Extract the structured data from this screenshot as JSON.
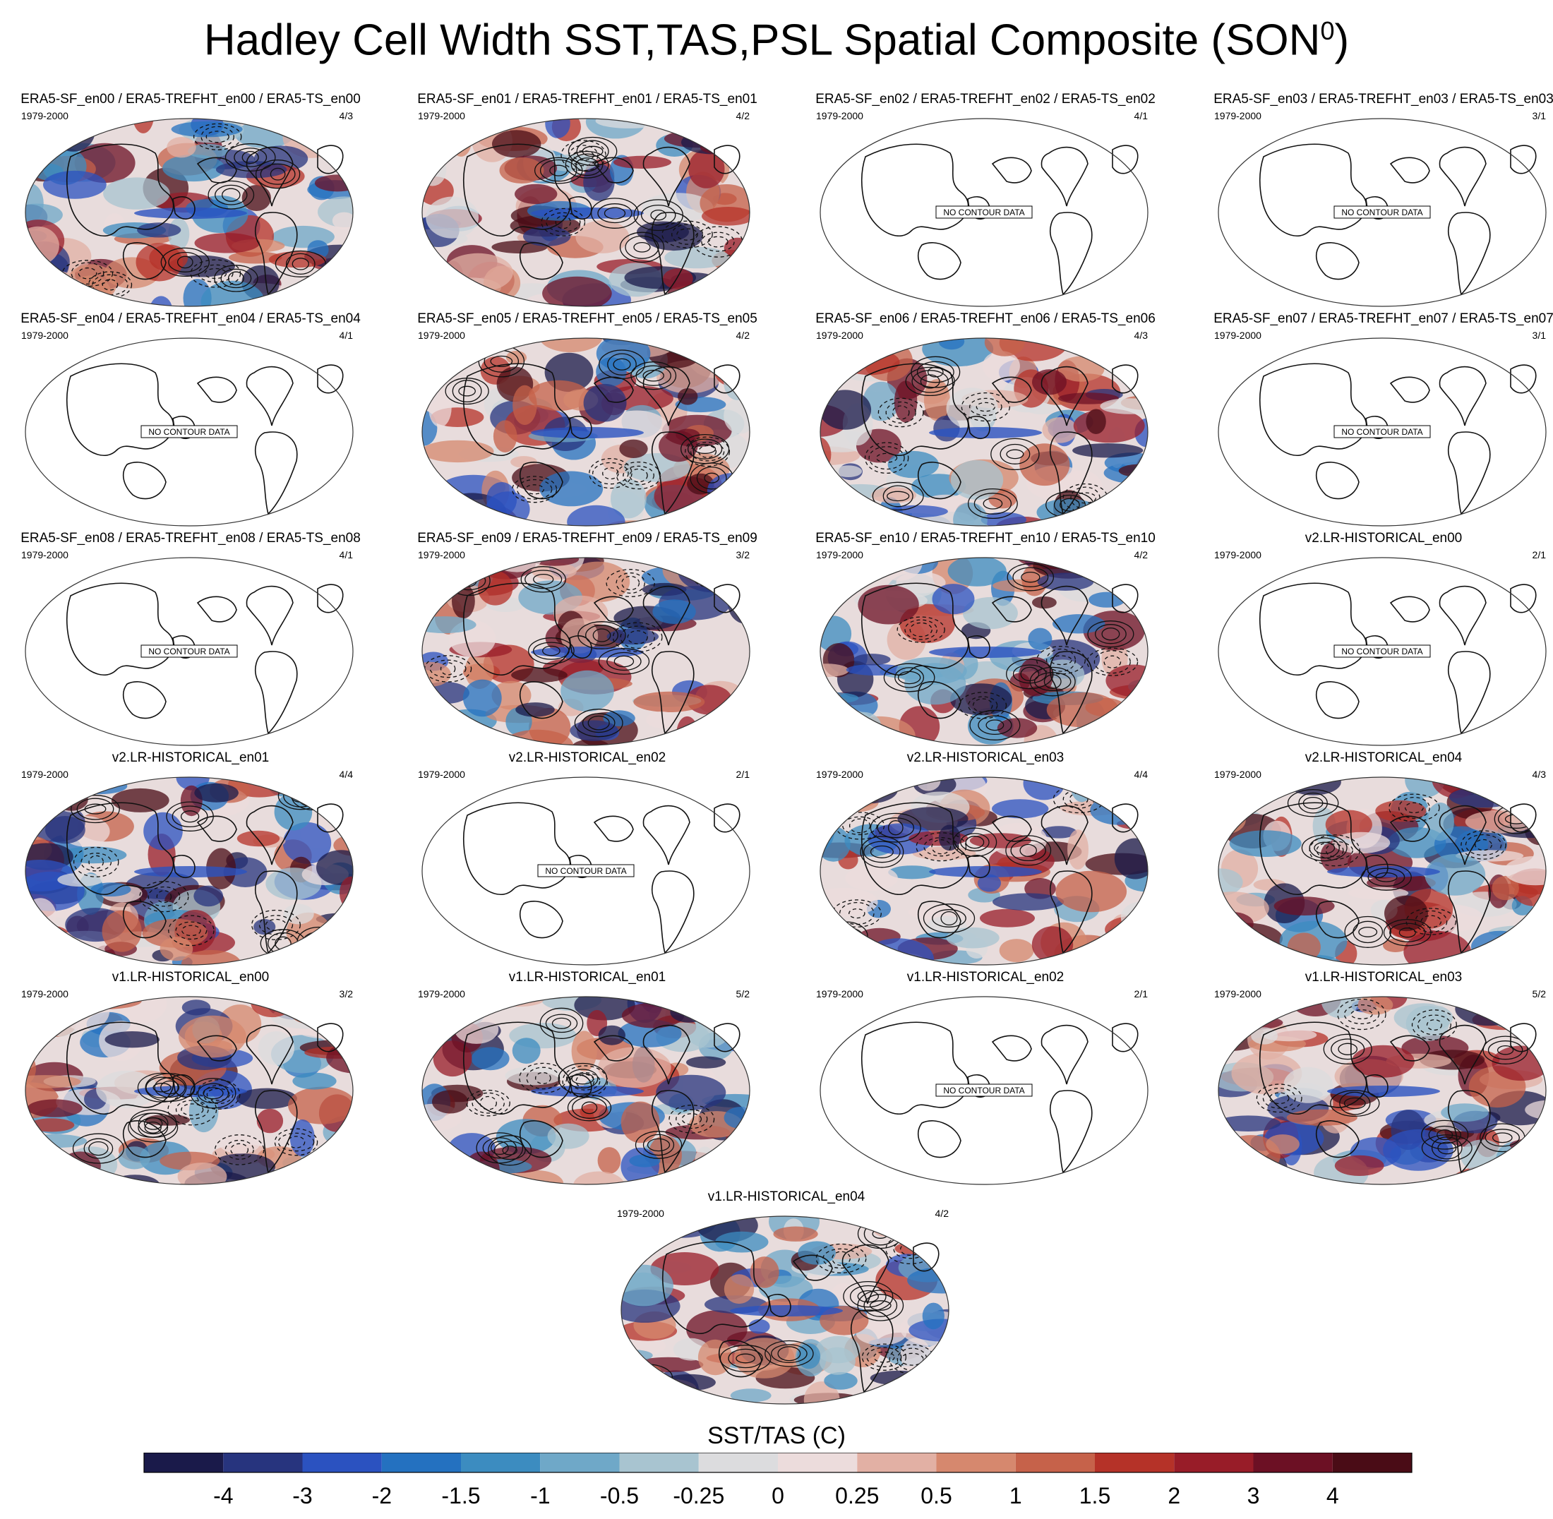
{
  "title": "Hadley Cell Width SST,TAS,PSL Spatial Composite (SON",
  "title_sup": "0",
  "title_suffix": ")",
  "period": "1979-2000",
  "no_contour_label": "NO CONTOUR DATA",
  "panels": [
    {
      "title": "ERA5-SF_en00 / ERA5-TREFHT_en00 / ERA5-TS_en00",
      "count": "4/3",
      "has_data": true
    },
    {
      "title": "ERA5-SF_en01 / ERA5-TREFHT_en01 / ERA5-TS_en01",
      "count": "4/2",
      "has_data": true
    },
    {
      "title": "ERA5-SF_en02 / ERA5-TREFHT_en02 / ERA5-TS_en02",
      "count": "4/1",
      "has_data": false
    },
    {
      "title": "ERA5-SF_en03 / ERA5-TREFHT_en03 / ERA5-TS_en03",
      "count": "3/1",
      "has_data": false
    },
    {
      "title": "ERA5-SF_en04 / ERA5-TREFHT_en04 / ERA5-TS_en04",
      "count": "4/1",
      "has_data": false
    },
    {
      "title": "ERA5-SF_en05 / ERA5-TREFHT_en05 / ERA5-TS_en05",
      "count": "4/2",
      "has_data": true
    },
    {
      "title": "ERA5-SF_en06 / ERA5-TREFHT_en06 / ERA5-TS_en06",
      "count": "4/3",
      "has_data": true
    },
    {
      "title": "ERA5-SF_en07 / ERA5-TREFHT_en07 / ERA5-TS_en07",
      "count": "3/1",
      "has_data": false
    },
    {
      "title": "ERA5-SF_en08 / ERA5-TREFHT_en08 / ERA5-TS_en08",
      "count": "4/1",
      "has_data": false
    },
    {
      "title": "ERA5-SF_en09 / ERA5-TREFHT_en09 / ERA5-TS_en09",
      "count": "3/2",
      "has_data": true
    },
    {
      "title": "ERA5-SF_en10 / ERA5-TREFHT_en10 / ERA5-TS_en10",
      "count": "4/2",
      "has_data": true
    },
    {
      "title": "v2.LR-HISTORICAL_en00",
      "count": "2/1",
      "has_data": false
    },
    {
      "title": "v2.LR-HISTORICAL_en01",
      "count": "4/4",
      "has_data": true
    },
    {
      "title": "v2.LR-HISTORICAL_en02",
      "count": "2/1",
      "has_data": false
    },
    {
      "title": "v2.LR-HISTORICAL_en03",
      "count": "4/4",
      "has_data": true
    },
    {
      "title": "v2.LR-HISTORICAL_en04",
      "count": "4/3",
      "has_data": true
    },
    {
      "title": "v1.LR-HISTORICAL_en00",
      "count": "3/2",
      "has_data": true
    },
    {
      "title": "v1.LR-HISTORICAL_en01",
      "count": "5/2",
      "has_data": true
    },
    {
      "title": "v1.LR-HISTORICAL_en02",
      "count": "2/1",
      "has_data": false
    },
    {
      "title": "v1.LR-HISTORICAL_en03",
      "count": "5/2",
      "has_data": true
    },
    {
      "title": "v1.LR-HISTORICAL_en04",
      "count": "4/2",
      "has_data": true
    }
  ],
  "colorbar": {
    "title": "SST/TAS (C)",
    "labels": [
      "-4",
      "-3",
      "-2",
      "-1.5",
      "-1",
      "-0.5",
      "-0.25",
      "0",
      "0.25",
      "0.5",
      "1",
      "1.5",
      "2",
      "3",
      "4"
    ],
    "colors": [
      "#1a1a4a",
      "#27347e",
      "#2b52c0",
      "#2471c0",
      "#3c8cc0",
      "#6fa8c8",
      "#a8c4d0",
      "#dcdcde",
      "#ecdcdc",
      "#e2b0a4",
      "#d6886e",
      "#c6624a",
      "#b53228",
      "#981c28",
      "#6c1024",
      "#4a0c16"
    ]
  }
}
